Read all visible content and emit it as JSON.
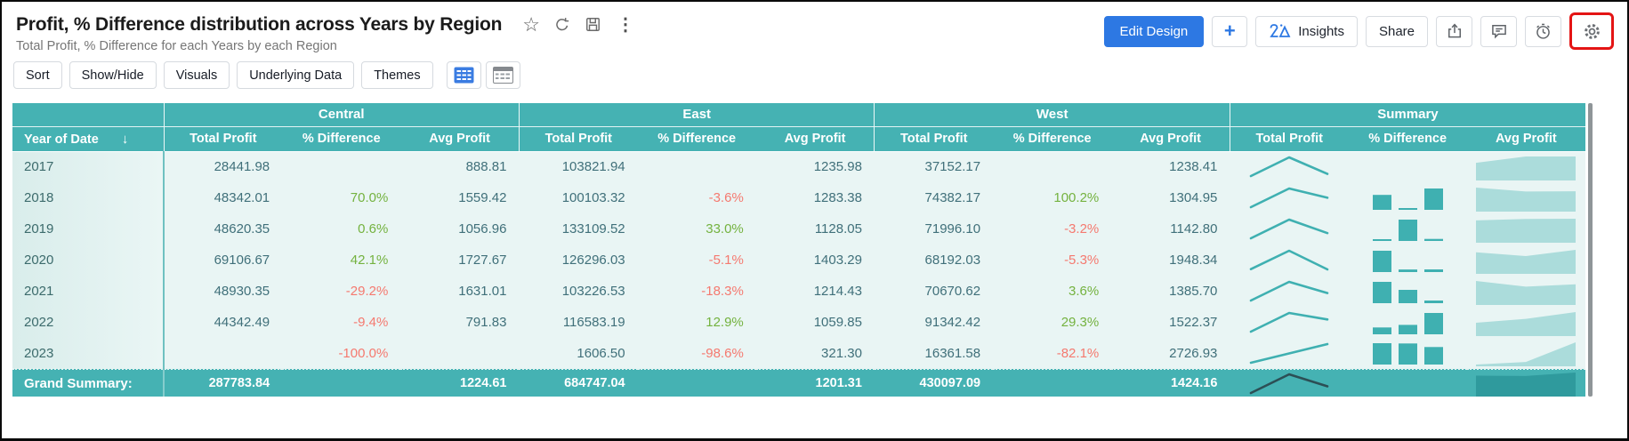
{
  "header": {
    "title": "Profit, % Difference distribution across Years by Region",
    "subtitle": "Total Profit, % Difference for each Years by each Region",
    "title_icons": [
      "star-icon",
      "refresh-icon",
      "save-icon",
      "kebab-menu-icon"
    ],
    "actions": {
      "edit_design": "Edit Design",
      "plus": "+",
      "insights": "Insights",
      "share": "Share",
      "icon_buttons": [
        "export-icon",
        "comment-icon",
        "alarm-icon",
        "settings-gear-icon"
      ]
    },
    "annotations": [
      {
        "type": "red-highlight-box",
        "target": "settings-gear-button"
      }
    ]
  },
  "toolbar": {
    "buttons": [
      "Sort",
      "Show/Hide",
      "Visuals",
      "Underlying Data",
      "Themes"
    ],
    "view_toggles": [
      "compact-table-view-icon",
      "tabular-view-icon"
    ]
  },
  "colors": {
    "header_teal": "#45b2b3",
    "row_bg": "#e9f5f4",
    "frozen_col_bg": "#ddefed",
    "positive_green": "#74b23f",
    "negative_red": "#f5796f",
    "value_text": "#40707a",
    "primary_blue": "#2d78e3",
    "sparkline_teal": "#3fb0b1",
    "area_light": "#abdcdb",
    "grand_sparkline_dark": "#2c4f55",
    "grand_area_dark": "#2f9a9d",
    "annotation_red": "#e41414"
  },
  "chart_data": {
    "type": "table",
    "title": "Profit, % Difference distribution across Years by Region",
    "row_header": "Year of Date",
    "sort_indicator": "descending",
    "column_groups": [
      "Central",
      "East",
      "West",
      "Summary"
    ],
    "sub_columns": [
      "Total Profit",
      "% Difference",
      "Avg Profit"
    ],
    "summary_visuals": [
      "line-sparkline",
      "mini-bars",
      "area-chart"
    ],
    "rows": [
      {
        "year": "2017",
        "central": {
          "total_profit": 28441.98,
          "pct_difference": null,
          "avg_profit": 888.81
        },
        "east": {
          "total_profit": 103821.94,
          "pct_difference": null,
          "avg_profit": 1235.98
        },
        "west": {
          "total_profit": 37152.17,
          "pct_difference": null,
          "avg_profit": 1238.41
        }
      },
      {
        "year": "2018",
        "central": {
          "total_profit": 48342.01,
          "pct_difference": 70.0,
          "avg_profit": 1559.42
        },
        "east": {
          "total_profit": 100103.32,
          "pct_difference": -3.6,
          "avg_profit": 1283.38
        },
        "west": {
          "total_profit": 74382.17,
          "pct_difference": 100.2,
          "avg_profit": 1304.95
        }
      },
      {
        "year": "2019",
        "central": {
          "total_profit": 48620.35,
          "pct_difference": 0.6,
          "avg_profit": 1056.96
        },
        "east": {
          "total_profit": 133109.52,
          "pct_difference": 33.0,
          "avg_profit": 1128.05
        },
        "west": {
          "total_profit": 71996.1,
          "pct_difference": -3.2,
          "avg_profit": 1142.8
        }
      },
      {
        "year": "2020",
        "central": {
          "total_profit": 69106.67,
          "pct_difference": 42.1,
          "avg_profit": 1727.67
        },
        "east": {
          "total_profit": 126296.03,
          "pct_difference": -5.1,
          "avg_profit": 1403.29
        },
        "west": {
          "total_profit": 68192.03,
          "pct_difference": -5.3,
          "avg_profit": 1948.34
        }
      },
      {
        "year": "2021",
        "central": {
          "total_profit": 48930.35,
          "pct_difference": -29.2,
          "avg_profit": 1631.01
        },
        "east": {
          "total_profit": 103226.53,
          "pct_difference": -18.3,
          "avg_profit": 1214.43
        },
        "west": {
          "total_profit": 70670.62,
          "pct_difference": 3.6,
          "avg_profit": 1385.7
        }
      },
      {
        "year": "2022",
        "central": {
          "total_profit": 44342.49,
          "pct_difference": -9.4,
          "avg_profit": 791.83
        },
        "east": {
          "total_profit": 116583.19,
          "pct_difference": 12.9,
          "avg_profit": 1059.85
        },
        "west": {
          "total_profit": 91342.42,
          "pct_difference": 29.3,
          "avg_profit": 1522.37
        }
      },
      {
        "year": "2023",
        "central": {
          "total_profit": null,
          "pct_difference": -100.0,
          "avg_profit": null
        },
        "east": {
          "total_profit": 1606.5,
          "pct_difference": -98.6,
          "avg_profit": 321.3
        },
        "west": {
          "total_profit": 16361.58,
          "pct_difference": -82.1,
          "avg_profit": 2726.93
        }
      }
    ],
    "grand_summary": {
      "label": "Grand Summary:",
      "central": {
        "total_profit": 287783.84,
        "pct_difference": null,
        "avg_profit": 1224.61
      },
      "east": {
        "total_profit": 684747.04,
        "pct_difference": null,
        "avg_profit": 1201.31
      },
      "west": {
        "total_profit": 430097.09,
        "pct_difference": null,
        "avg_profit": 1424.16
      }
    }
  }
}
